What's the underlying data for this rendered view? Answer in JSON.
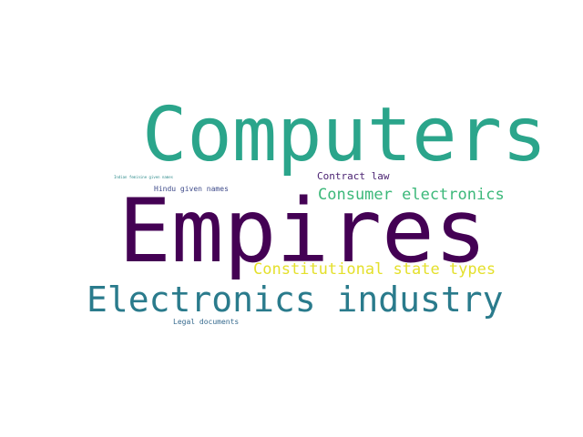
{
  "word_cloud": {
    "words": [
      {
        "key": "computers",
        "text": "Computers",
        "color": "#2ba58b"
      },
      {
        "key": "empires",
        "text": "Empires",
        "color": "#440154"
      },
      {
        "key": "electronics",
        "text": "Electronics industry",
        "color": "#2a7b8c"
      },
      {
        "key": "consumer",
        "text": "Consumer electronics",
        "color": "#3cb87a"
      },
      {
        "key": "constitut",
        "text": "Constitutional state types",
        "color": "#e4e02c"
      },
      {
        "key": "contract",
        "text": "Contract law",
        "color": "#4b2372"
      },
      {
        "key": "hindu",
        "text": "Hindu given names",
        "color": "#3f4b8a"
      },
      {
        "key": "legal",
        "text": "Legal documents",
        "color": "#366a8e"
      },
      {
        "key": "indian",
        "text": "Indian feminine given names",
        "color": "#2f8c8c"
      }
    ]
  }
}
